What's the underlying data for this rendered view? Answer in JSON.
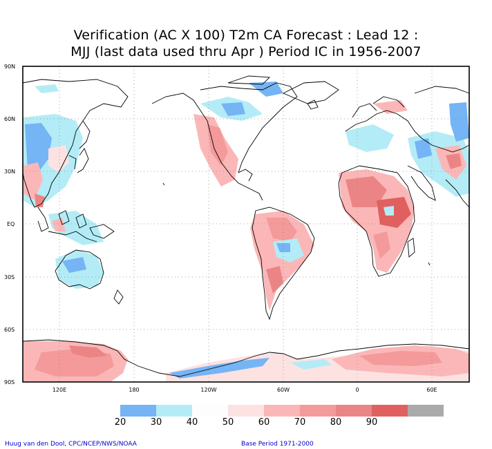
{
  "title": {
    "line1": "Verification (AC X 100) T2m CA Forecast : Lead 12 :",
    "line2": "MJJ (last data used thru Apr ) Period IC in 1956-2007"
  },
  "axes": {
    "lat_labels": [
      "90N",
      "60N",
      "30N",
      "EQ",
      "30S",
      "60S",
      "90S"
    ],
    "lon_labels": [
      "120E",
      "180",
      "120W",
      "60W",
      "0",
      "60E"
    ]
  },
  "colorbar": {
    "labels": [
      "20",
      "30",
      "40",
      "50",
      "60",
      "70",
      "80",
      "90"
    ],
    "colors": [
      "#75b4f5",
      "#b3ecf6",
      "#fdfdfd",
      "#fde2e2",
      "#fbb7b7",
      "#f49a9a",
      "#eb8585",
      "#e06060",
      "#aaaaaa"
    ]
  },
  "footer": {
    "credit": "Huug van den Dool, CPC/NCEP/NWS/NOAA",
    "base_period": "Base Period 1971-2000"
  }
}
